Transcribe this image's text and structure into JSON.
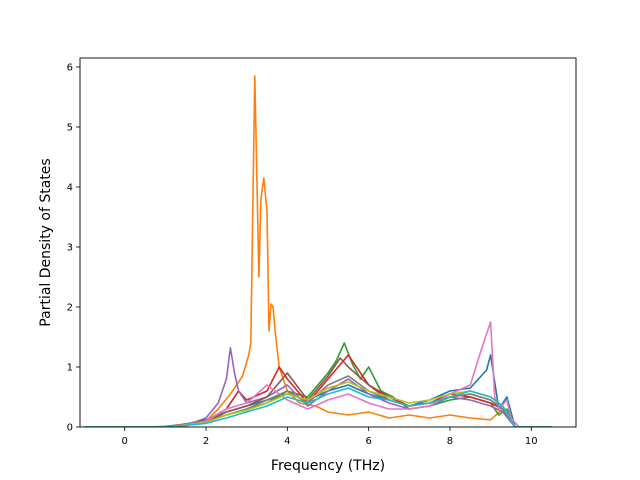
{
  "chart_data": {
    "type": "line",
    "title": "",
    "xlabel": "Frequency (THz)",
    "ylabel": "Partial Density of States",
    "xlim": [
      -1.1,
      11.1
    ],
    "ylim": [
      0,
      6.15
    ],
    "xticks": [
      0,
      2,
      4,
      6,
      8,
      10
    ],
    "yticks": [
      0,
      1,
      2,
      3,
      4,
      5,
      6
    ],
    "grid": false,
    "legend": "none",
    "series": [
      {
        "color": "#1f77b4",
        "x": [
          -1,
          0.5,
          1,
          1.5,
          2,
          2.5,
          3,
          3.5,
          4,
          4.5,
          5,
          5.5,
          6,
          6.5,
          7,
          7.5,
          8,
          8.5,
          8.9,
          9,
          9.2,
          9.4,
          9.6,
          10.5
        ],
        "y": [
          0,
          0,
          0.01,
          0.05,
          0.12,
          0.25,
          0.35,
          0.45,
          0.55,
          0.45,
          0.6,
          0.7,
          0.55,
          0.45,
          0.35,
          0.45,
          0.6,
          0.65,
          0.95,
          1.2,
          0.3,
          0.5,
          0,
          0
        ]
      },
      {
        "color": "#ff7f0e",
        "x": [
          -1,
          1,
          1.5,
          2,
          2.3,
          2.6,
          2.9,
          3.05,
          3.1,
          3.2,
          3.3,
          3.35,
          3.42,
          3.5,
          3.55,
          3.6,
          3.65,
          3.7,
          3.8,
          4,
          4.3,
          4.7,
          5,
          5.5,
          6,
          6.5,
          7,
          7.5,
          8,
          8.5,
          9,
          9.3,
          9.6,
          10.5
        ],
        "y": [
          0,
          0,
          0.02,
          0.1,
          0.3,
          0.55,
          0.85,
          1.2,
          1.4,
          5.85,
          2.5,
          3.8,
          4.15,
          3.6,
          1.6,
          2.05,
          2.0,
          1.6,
          1.0,
          0.6,
          0.4,
          0.35,
          0.25,
          0.2,
          0.25,
          0.15,
          0.2,
          0.15,
          0.2,
          0.15,
          0.12,
          0.3,
          0,
          0
        ]
      },
      {
        "color": "#2ca02c",
        "x": [
          -1,
          1,
          2,
          2.5,
          3,
          3.5,
          4,
          4.5,
          5,
          5.2,
          5.4,
          5.6,
          5.8,
          6,
          6.3,
          6.6,
          7,
          7.5,
          8,
          8.5,
          9,
          9.2,
          9.4,
          9.6,
          10.5
        ],
        "y": [
          0,
          0,
          0.1,
          0.2,
          0.3,
          0.4,
          0.6,
          0.5,
          0.9,
          1.1,
          1.4,
          1.05,
          0.8,
          1.0,
          0.6,
          0.5,
          0.3,
          0.35,
          0.45,
          0.5,
          0.4,
          0.2,
          0.3,
          0,
          0
        ]
      },
      {
        "color": "#d62728",
        "x": [
          -1,
          1,
          2,
          2.5,
          2.8,
          3,
          3.5,
          3.8,
          4,
          4.5,
          5,
          5.5,
          6,
          6.5,
          7,
          7.5,
          8,
          8.5,
          9,
          9.3,
          9.6,
          10.5
        ],
        "y": [
          0,
          0,
          0.1,
          0.3,
          0.6,
          0.45,
          0.6,
          1.0,
          0.8,
          0.4,
          0.8,
          1.2,
          0.7,
          0.5,
          0.35,
          0.4,
          0.55,
          0.5,
          0.4,
          0.3,
          0,
          0
        ]
      },
      {
        "color": "#9467bd",
        "x": [
          -1,
          1,
          1.5,
          2,
          2.3,
          2.5,
          2.6,
          2.7,
          2.8,
          3,
          3.5,
          4,
          4.5,
          5,
          5.5,
          6,
          6.5,
          7,
          7.5,
          8,
          8.5,
          9,
          9.3,
          9.6,
          10.5
        ],
        "y": [
          0,
          0,
          0.03,
          0.15,
          0.4,
          0.8,
          1.32,
          0.9,
          0.6,
          0.4,
          0.5,
          0.7,
          0.35,
          0.6,
          0.8,
          0.55,
          0.4,
          0.3,
          0.35,
          0.5,
          0.45,
          0.35,
          0.25,
          0,
          0
        ]
      },
      {
        "color": "#8c564b",
        "x": [
          -1,
          1,
          2,
          2.5,
          3,
          3.5,
          4,
          4.5,
          5,
          5.3,
          5.5,
          6,
          6.5,
          7,
          7.5,
          8,
          8.5,
          9,
          9.3,
          9.6,
          10.5
        ],
        "y": [
          0,
          0,
          0.08,
          0.25,
          0.35,
          0.5,
          0.9,
          0.45,
          0.85,
          1.15,
          1.0,
          0.7,
          0.45,
          0.35,
          0.4,
          0.5,
          0.55,
          0.45,
          0.3,
          0,
          0
        ]
      },
      {
        "color": "#e377c2",
        "x": [
          -1,
          1,
          1.5,
          2,
          2.5,
          3,
          3.5,
          4,
          4.5,
          5,
          5.5,
          6,
          6.5,
          7,
          7.5,
          8,
          8.5,
          8.8,
          9,
          9.1,
          9.2,
          9.4,
          9.5,
          9.7,
          10.5
        ],
        "y": [
          0,
          0,
          0.02,
          0.1,
          0.3,
          0.4,
          0.7,
          0.45,
          0.3,
          0.45,
          0.55,
          0.4,
          0.3,
          0.3,
          0.35,
          0.55,
          0.7,
          1.35,
          1.75,
          0.5,
          0.3,
          0.45,
          0.15,
          0,
          0
        ]
      },
      {
        "color": "#7f7f7f",
        "x": [
          -1,
          1,
          2,
          2.5,
          3,
          3.5,
          4,
          4.5,
          5,
          5.5,
          6,
          6.5,
          7,
          7.5,
          8,
          8.5,
          9,
          9.3,
          9.6,
          10.5
        ],
        "y": [
          0,
          0,
          0.08,
          0.2,
          0.3,
          0.45,
          0.6,
          0.4,
          0.7,
          0.85,
          0.6,
          0.45,
          0.35,
          0.4,
          0.5,
          0.55,
          0.45,
          0.3,
          0,
          0
        ]
      },
      {
        "color": "#bcbd22",
        "x": [
          -1,
          1,
          2,
          2.5,
          3,
          3.5,
          4,
          4.5,
          5,
          5.5,
          6,
          6.5,
          7,
          7.5,
          8,
          8.5,
          9,
          9.3,
          9.6,
          10.5
        ],
        "y": [
          0,
          0,
          0.08,
          0.2,
          0.28,
          0.4,
          0.55,
          0.45,
          0.65,
          0.75,
          0.6,
          0.5,
          0.4,
          0.45,
          0.55,
          0.6,
          0.5,
          0.35,
          0,
          0
        ]
      },
      {
        "color": "#17becf",
        "x": [
          -1,
          1,
          2,
          2.5,
          3,
          3.5,
          4,
          4.5,
          5,
          5.5,
          6,
          6.5,
          7,
          7.5,
          8,
          8.5,
          9,
          9.3,
          9.6,
          10.5
        ],
        "y": [
          0,
          0,
          0.06,
          0.15,
          0.25,
          0.35,
          0.5,
          0.4,
          0.55,
          0.65,
          0.5,
          0.45,
          0.35,
          0.4,
          0.5,
          0.6,
          0.5,
          0.35,
          0,
          0
        ]
      }
    ]
  }
}
